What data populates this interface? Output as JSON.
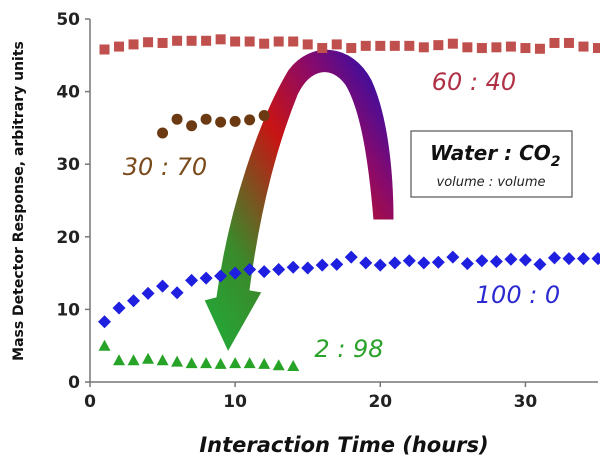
{
  "chart_data": {
    "type": "scatter",
    "title": "",
    "xlabel": "Interaction Time (hours)",
    "ylabel": "Mass Detector Response, arbitrary units",
    "xlim": [
      0,
      35
    ],
    "ylim": [
      0,
      50
    ],
    "xticks": [
      "0",
      "10",
      "20",
      "30"
    ],
    "yticks": [
      "0",
      "10",
      "20",
      "30",
      "40",
      "50"
    ],
    "grid": false,
    "legend": {
      "title_main": "Water : CO",
      "title_sub": "2",
      "subtitle": "volume : volume"
    },
    "colors": {
      "s60_40": "#c0504d",
      "s30_70": "#6b3a12",
      "s100_0": "#1f1fe0",
      "s2_98": "#27a327",
      "label60_40": "#b03045",
      "label30_70": "#7b4a1a",
      "label100_0": "#2a2ad0",
      "label2_98": "#2aa22a"
    },
    "series": [
      {
        "label": "60 : 40",
        "marker": "square",
        "x": [
          1,
          2,
          3,
          4,
          5,
          6,
          7,
          8,
          9,
          10,
          11,
          12,
          13,
          14,
          15,
          16,
          17,
          18,
          19,
          20,
          21,
          22,
          23,
          24,
          25,
          26,
          27,
          28,
          29,
          30,
          31,
          32,
          33,
          34,
          35
        ],
        "y": [
          45.8,
          46.2,
          46.5,
          46.8,
          46.7,
          47.0,
          47.0,
          47.0,
          47.2,
          46.9,
          46.9,
          46.6,
          46.9,
          46.9,
          46.5,
          46.0,
          46.5,
          46.0,
          46.3,
          46.3,
          46.3,
          46.3,
          46.1,
          46.4,
          46.6,
          46.1,
          46.0,
          46.1,
          46.2,
          46.0,
          45.9,
          46.7,
          46.7,
          46.2,
          46.0
        ]
      },
      {
        "label": "30 : 70",
        "marker": "circle",
        "x": [
          5,
          6,
          7,
          8,
          9,
          10,
          11,
          12
        ],
        "y": [
          34.3,
          36.2,
          35.3,
          36.2,
          35.8,
          35.9,
          36.1,
          36.7
        ]
      },
      {
        "label": "100 : 0",
        "marker": "diamond",
        "x": [
          1,
          2,
          3,
          4,
          5,
          6,
          7,
          8,
          9,
          10,
          11,
          12,
          13,
          14,
          15,
          16,
          17,
          18,
          19,
          20,
          21,
          22,
          23,
          24,
          25,
          26,
          27,
          28,
          29,
          30,
          31,
          32,
          33,
          34,
          35
        ],
        "y": [
          8.3,
          10.2,
          11.2,
          12.2,
          13.2,
          12.3,
          14.0,
          14.3,
          14.6,
          15.0,
          15.5,
          15.2,
          15.5,
          15.8,
          15.7,
          16.1,
          16.2,
          17.2,
          16.4,
          16.1,
          16.4,
          16.7,
          16.4,
          16.5,
          17.2,
          16.3,
          16.7,
          16.6,
          16.9,
          16.8,
          16.2,
          17.1,
          17.0,
          17.0,
          17.0
        ]
      },
      {
        "label": "2 : 98",
        "marker": "triangle",
        "x": [
          1,
          2,
          3,
          4,
          5,
          6,
          7,
          8,
          9,
          10,
          11,
          12,
          13,
          14
        ],
        "y": [
          5.0,
          3.0,
          3.0,
          3.2,
          3.0,
          2.8,
          2.6,
          2.6,
          2.5,
          2.6,
          2.6,
          2.5,
          2.3,
          2.2
        ]
      }
    ]
  }
}
